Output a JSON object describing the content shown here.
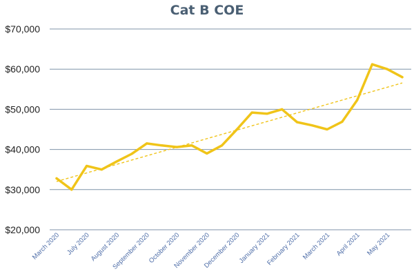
{
  "chart_data": {
    "type": "line",
    "title": "Cat B COE",
    "xlabel": "",
    "ylabel": "",
    "ylim": [
      20000,
      70000
    ],
    "yticks": [
      "$20,000",
      "$30,000",
      "$40,000",
      "$50,000",
      "$60,000",
      "$70,000"
    ],
    "ytick_values": [
      20000,
      30000,
      40000,
      50000,
      60000,
      70000
    ],
    "grid": true,
    "legend": "none",
    "x_tick_labels": [
      "March 2020",
      "July 2020",
      "August 2020",
      "September 2020",
      "October 2020",
      "November 2020",
      "December 2020",
      "January 2021",
      "February 2021",
      "March 2021",
      "April 2021",
      "May 2021"
    ],
    "x_tick_index": [
      0,
      2,
      4,
      6,
      8,
      10,
      12,
      14,
      16,
      18,
      20,
      22
    ],
    "series": [
      {
        "color": "#f0c419",
        "values": [
          32800,
          30000,
          35900,
          35000,
          37000,
          38900,
          41500,
          41000,
          40600,
          41000,
          39000,
          41000,
          45000,
          49200,
          48900,
          50000,
          46800,
          46000,
          45000,
          46900,
          52300,
          61200,
          60000,
          58000
        ]
      }
    ],
    "trendline": {
      "type": "linear",
      "color": "#f0c419",
      "style": "dashed"
    },
    "colors": {
      "grid": "#7f93a8",
      "axis_label": "#4f6ea8",
      "title": "#4a5f73"
    }
  }
}
